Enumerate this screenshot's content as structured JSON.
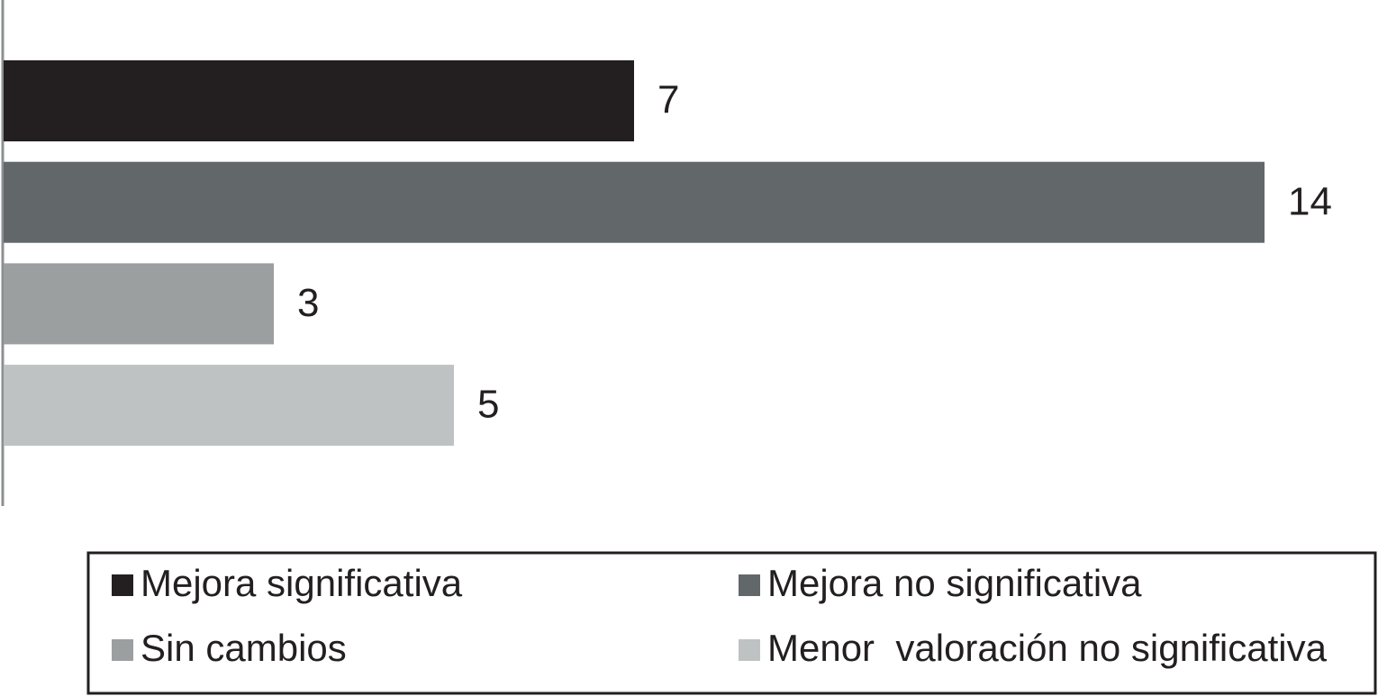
{
  "chart_data": {
    "type": "bar",
    "orientation": "horizontal",
    "series": [
      {
        "name": "Mejora significativa",
        "color": "#231f20",
        "values": [
          7
        ]
      },
      {
        "name": "Mejora no significativa",
        "color": "#62676a",
        "values": [
          14
        ]
      },
      {
        "name": "Sin cambios",
        "color": "#9b9fa0",
        "values": [
          3
        ]
      },
      {
        "name": "Menor  valoración no significativa",
        "color": "#bec2c3",
        "values": [
          5
        ]
      }
    ],
    "xlim": [
      0,
      15
    ],
    "legend": "bottom"
  }
}
